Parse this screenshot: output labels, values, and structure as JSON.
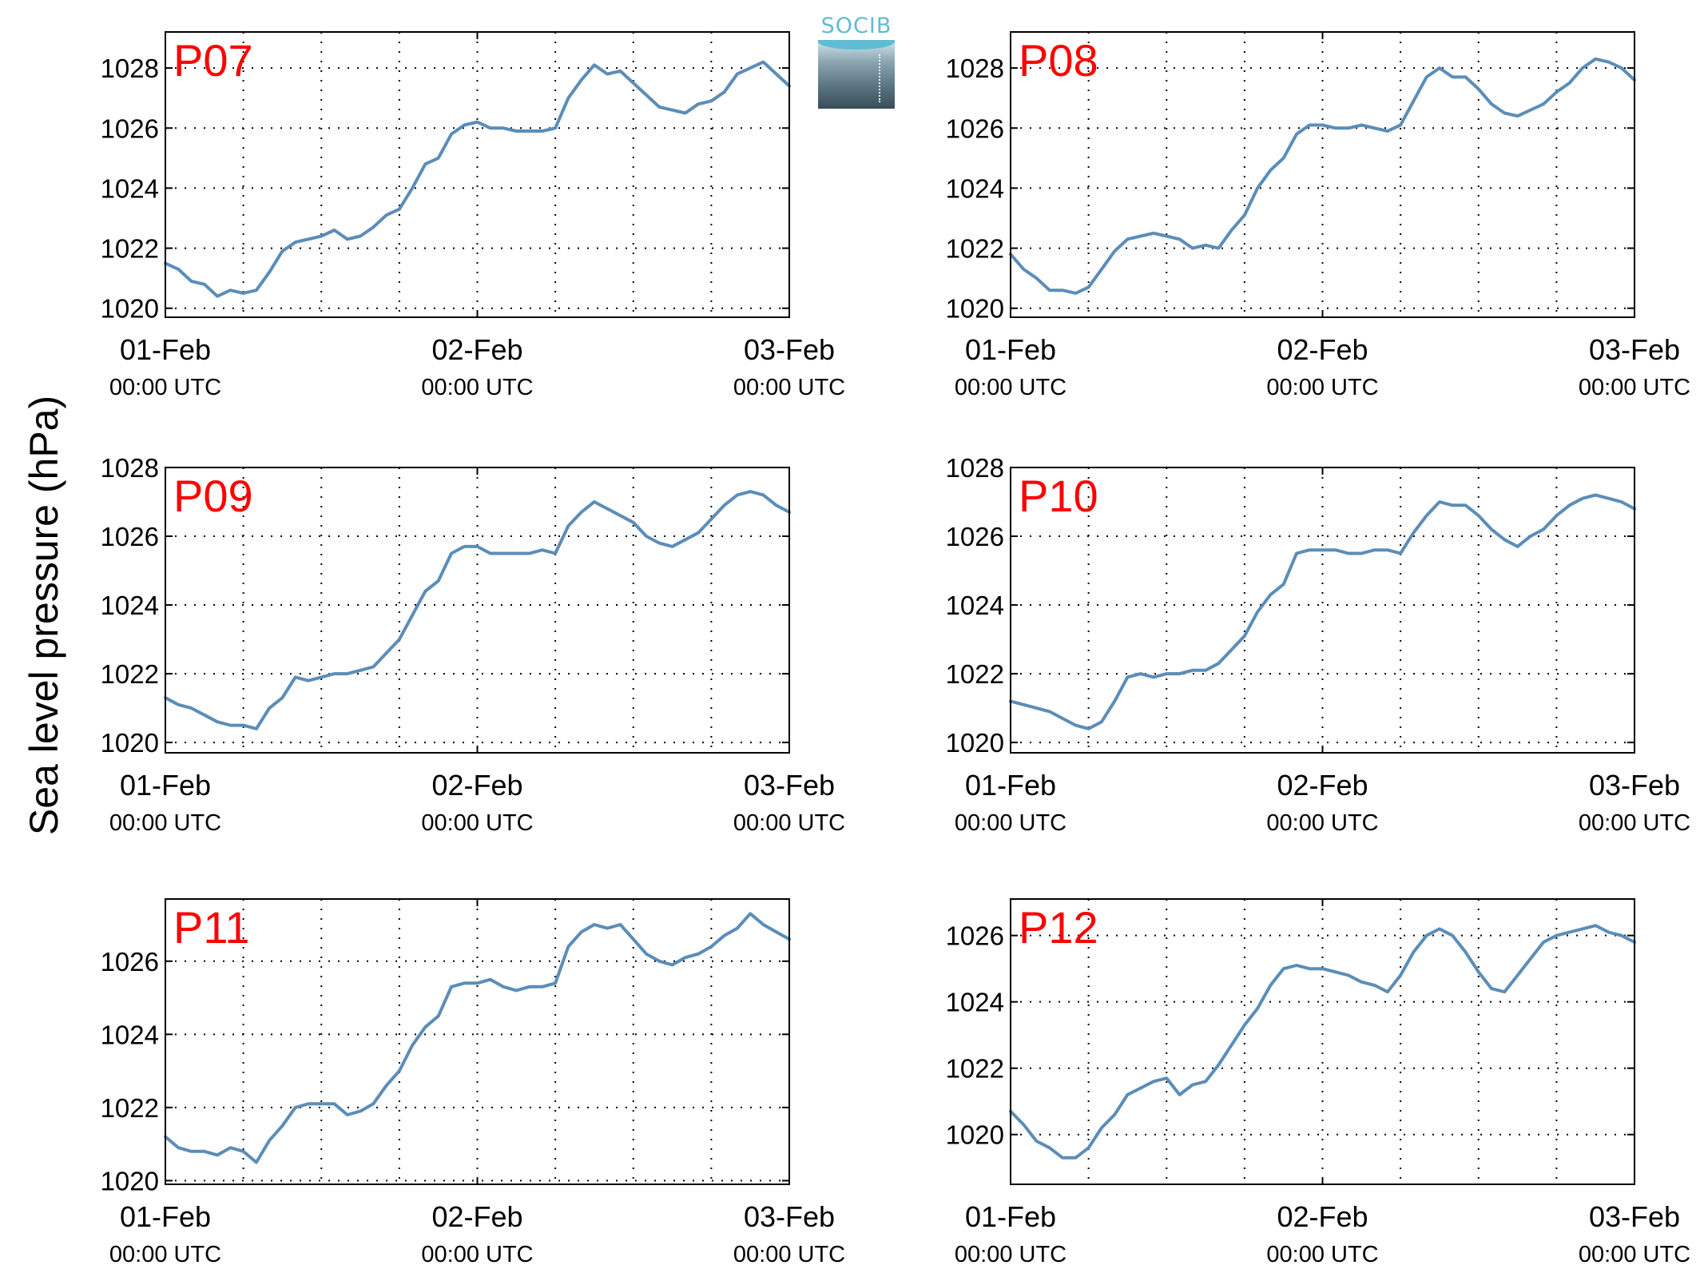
{
  "figure": {
    "ylabel": "Sea level pressure (hPa)",
    "logo_text": "SOCIB",
    "colors": {
      "line": "#5b8db8",
      "panel_title": "#ff0000",
      "grid": "#000000"
    }
  },
  "chart_data": [
    {
      "type": "line",
      "title": "P07",
      "xticks": [
        {
          "day": "01-Feb",
          "time": "00:00 UTC"
        },
        {
          "day": "02-Feb",
          "time": "00:00 UTC"
        },
        {
          "day": "03-Feb",
          "time": "00:00 UTC"
        }
      ],
      "xlim": [
        0,
        48
      ],
      "ylim": [
        1019.7,
        1029.2
      ],
      "yticks": [
        1020,
        1022,
        1024,
        1026,
        1028
      ],
      "grid": true,
      "x": [
        0,
        1,
        2,
        3,
        4,
        5,
        6,
        7,
        8,
        9,
        10,
        11,
        12,
        13,
        14,
        15,
        16,
        17,
        18,
        19,
        20,
        21,
        22,
        23,
        24,
        25,
        26,
        27,
        28,
        29,
        30,
        31,
        32,
        33,
        34,
        35,
        36,
        37,
        38,
        39,
        40,
        41,
        42,
        43,
        44,
        45,
        46,
        47,
        48
      ],
      "values": [
        1021.5,
        1021.3,
        1020.9,
        1020.8,
        1020.4,
        1020.6,
        1020.5,
        1020.6,
        1021.2,
        1021.9,
        1022.2,
        1022.3,
        1022.4,
        1022.6,
        1022.3,
        1022.4,
        1022.7,
        1023.1,
        1023.3,
        1024.0,
        1024.8,
        1025.0,
        1025.8,
        1026.1,
        1026.2,
        1026.0,
        1026.0,
        1025.9,
        1025.9,
        1025.9,
        1026.0,
        1027.0,
        1027.6,
        1028.1,
        1027.8,
        1027.9,
        1027.5,
        1027.1,
        1026.7,
        1026.6,
        1026.5,
        1026.8,
        1026.9,
        1027.2,
        1027.8,
        1028.0,
        1028.2,
        1027.8,
        1027.4
      ]
    },
    {
      "type": "line",
      "title": "P08",
      "xticks": [
        {
          "day": "01-Feb",
          "time": "00:00 UTC"
        },
        {
          "day": "02-Feb",
          "time": "00:00 UTC"
        },
        {
          "day": "03-Feb",
          "time": "00:00 UTC"
        }
      ],
      "xlim": [
        0,
        48
      ],
      "ylim": [
        1019.7,
        1029.2
      ],
      "yticks": [
        1020,
        1022,
        1024,
        1026,
        1028
      ],
      "grid": true,
      "x": [
        0,
        1,
        2,
        3,
        4,
        5,
        6,
        7,
        8,
        9,
        10,
        11,
        12,
        13,
        14,
        15,
        16,
        17,
        18,
        19,
        20,
        21,
        22,
        23,
        24,
        25,
        26,
        27,
        28,
        29,
        30,
        31,
        32,
        33,
        34,
        35,
        36,
        37,
        38,
        39,
        40,
        41,
        42,
        43,
        44,
        45,
        46,
        47,
        48
      ],
      "values": [
        1021.8,
        1021.3,
        1021.0,
        1020.6,
        1020.6,
        1020.5,
        1020.7,
        1021.3,
        1021.9,
        1022.3,
        1022.4,
        1022.5,
        1022.4,
        1022.3,
        1022.0,
        1022.1,
        1022.0,
        1022.6,
        1023.1,
        1024.0,
        1024.6,
        1025.0,
        1025.8,
        1026.1,
        1026.1,
        1026.0,
        1026.0,
        1026.1,
        1026.0,
        1025.9,
        1026.1,
        1026.9,
        1027.7,
        1028.0,
        1027.7,
        1027.7,
        1027.3,
        1026.8,
        1026.5,
        1026.4,
        1026.6,
        1026.8,
        1027.2,
        1027.5,
        1028.0,
        1028.3,
        1028.2,
        1028.0,
        1027.6
      ]
    },
    {
      "type": "line",
      "title": "P09",
      "xticks": [
        {
          "day": "01-Feb",
          "time": "00:00 UTC"
        },
        {
          "day": "02-Feb",
          "time": "00:00 UTC"
        },
        {
          "day": "03-Feb",
          "time": "00:00 UTC"
        }
      ],
      "xlim": [
        0,
        48
      ],
      "ylim": [
        1019.7,
        1028.0
      ],
      "yticks": [
        1020,
        1022,
        1024,
        1026,
        1028
      ],
      "grid": true,
      "x": [
        0,
        1,
        2,
        3,
        4,
        5,
        6,
        7,
        8,
        9,
        10,
        11,
        12,
        13,
        14,
        15,
        16,
        17,
        18,
        19,
        20,
        21,
        22,
        23,
        24,
        25,
        26,
        27,
        28,
        29,
        30,
        31,
        32,
        33,
        34,
        35,
        36,
        37,
        38,
        39,
        40,
        41,
        42,
        43,
        44,
        45,
        46,
        47,
        48
      ],
      "values": [
        1021.3,
        1021.1,
        1021.0,
        1020.8,
        1020.6,
        1020.5,
        1020.5,
        1020.4,
        1021.0,
        1021.3,
        1021.9,
        1021.8,
        1021.9,
        1022.0,
        1022.0,
        1022.1,
        1022.2,
        1022.6,
        1023.0,
        1023.7,
        1024.4,
        1024.7,
        1025.5,
        1025.7,
        1025.7,
        1025.5,
        1025.5,
        1025.5,
        1025.5,
        1025.6,
        1025.5,
        1026.3,
        1026.7,
        1027.0,
        1026.8,
        1026.6,
        1026.4,
        1026.0,
        1025.8,
        1025.7,
        1025.9,
        1026.1,
        1026.5,
        1026.9,
        1027.2,
        1027.3,
        1027.2,
        1026.9,
        1026.7
      ]
    },
    {
      "type": "line",
      "title": "P10",
      "xticks": [
        {
          "day": "01-Feb",
          "time": "00:00 UTC"
        },
        {
          "day": "02-Feb",
          "time": "00:00 UTC"
        },
        {
          "day": "03-Feb",
          "time": "00:00 UTC"
        }
      ],
      "xlim": [
        0,
        48
      ],
      "ylim": [
        1019.7,
        1028.0
      ],
      "yticks": [
        1020,
        1022,
        1024,
        1026,
        1028
      ],
      "grid": true,
      "x": [
        0,
        1,
        2,
        3,
        4,
        5,
        6,
        7,
        8,
        9,
        10,
        11,
        12,
        13,
        14,
        15,
        16,
        17,
        18,
        19,
        20,
        21,
        22,
        23,
        24,
        25,
        26,
        27,
        28,
        29,
        30,
        31,
        32,
        33,
        34,
        35,
        36,
        37,
        38,
        39,
        40,
        41,
        42,
        43,
        44,
        45,
        46,
        47,
        48
      ],
      "values": [
        1021.2,
        1021.1,
        1021.0,
        1020.9,
        1020.7,
        1020.5,
        1020.4,
        1020.6,
        1021.2,
        1021.9,
        1022.0,
        1021.9,
        1022.0,
        1022.0,
        1022.1,
        1022.1,
        1022.3,
        1022.7,
        1023.1,
        1023.8,
        1024.3,
        1024.6,
        1025.5,
        1025.6,
        1025.6,
        1025.6,
        1025.5,
        1025.5,
        1025.6,
        1025.6,
        1025.5,
        1026.1,
        1026.6,
        1027.0,
        1026.9,
        1026.9,
        1026.6,
        1026.2,
        1025.9,
        1025.7,
        1026.0,
        1026.2,
        1026.6,
        1026.9,
        1027.1,
        1027.2,
        1027.1,
        1027.0,
        1026.8
      ]
    },
    {
      "type": "line",
      "title": "P11",
      "xticks": [
        {
          "day": "01-Feb",
          "time": "00:00 UTC"
        },
        {
          "day": "02-Feb",
          "time": "00:00 UTC"
        },
        {
          "day": "03-Feb",
          "time": "00:00 UTC"
        }
      ],
      "xlim": [
        0,
        48
      ],
      "ylim": [
        1019.9,
        1027.7
      ],
      "yticks": [
        1020,
        1022,
        1024,
        1026
      ],
      "grid": true,
      "x": [
        0,
        1,
        2,
        3,
        4,
        5,
        6,
        7,
        8,
        9,
        10,
        11,
        12,
        13,
        14,
        15,
        16,
        17,
        18,
        19,
        20,
        21,
        22,
        23,
        24,
        25,
        26,
        27,
        28,
        29,
        30,
        31,
        32,
        33,
        34,
        35,
        36,
        37,
        38,
        39,
        40,
        41,
        42,
        43,
        44,
        45,
        46,
        47,
        48
      ],
      "values": [
        1021.2,
        1020.9,
        1020.8,
        1020.8,
        1020.7,
        1020.9,
        1020.8,
        1020.5,
        1021.1,
        1021.5,
        1022.0,
        1022.1,
        1022.1,
        1022.1,
        1021.8,
        1021.9,
        1022.1,
        1022.6,
        1023.0,
        1023.7,
        1024.2,
        1024.5,
        1025.3,
        1025.4,
        1025.4,
        1025.5,
        1025.3,
        1025.2,
        1025.3,
        1025.3,
        1025.4,
        1026.4,
        1026.8,
        1027.0,
        1026.9,
        1027.0,
        1026.6,
        1026.2,
        1026.0,
        1025.9,
        1026.1,
        1026.2,
        1026.4,
        1026.7,
        1026.9,
        1027.3,
        1027.0,
        1026.8,
        1026.6
      ]
    },
    {
      "type": "line",
      "title": "P12",
      "xticks": [
        {
          "day": "01-Feb",
          "time": "00:00 UTC"
        },
        {
          "day": "02-Feb",
          "time": "00:00 UTC"
        },
        {
          "day": "03-Feb",
          "time": "00:00 UTC"
        }
      ],
      "xlim": [
        0,
        48
      ],
      "ylim": [
        1018.5,
        1027.1
      ],
      "yticks": [
        1020,
        1022,
        1024,
        1026
      ],
      "grid": true,
      "x": [
        0,
        1,
        2,
        3,
        4,
        5,
        6,
        7,
        8,
        9,
        10,
        11,
        12,
        13,
        14,
        15,
        16,
        17,
        18,
        19,
        20,
        21,
        22,
        23,
        24,
        25,
        26,
        27,
        28,
        29,
        30,
        31,
        32,
        33,
        34,
        35,
        36,
        37,
        38,
        39,
        40,
        41,
        42,
        43,
        44,
        45,
        46,
        47,
        48
      ],
      "values": [
        1020.7,
        1020.3,
        1019.8,
        1019.6,
        1019.3,
        1019.3,
        1019.6,
        1020.2,
        1020.6,
        1021.2,
        1021.4,
        1021.6,
        1021.7,
        1021.2,
        1021.5,
        1021.6,
        1022.1,
        1022.7,
        1023.3,
        1023.8,
        1024.5,
        1025.0,
        1025.1,
        1025.0,
        1025.0,
        1024.9,
        1024.8,
        1024.6,
        1024.5,
        1024.3,
        1024.8,
        1025.5,
        1026.0,
        1026.2,
        1026.0,
        1025.5,
        1024.9,
        1024.4,
        1024.3,
        1024.8,
        1025.3,
        1025.8,
        1026.0,
        1026.1,
        1026.2,
        1026.3,
        1026.1,
        1026.0,
        1025.8
      ]
    }
  ]
}
